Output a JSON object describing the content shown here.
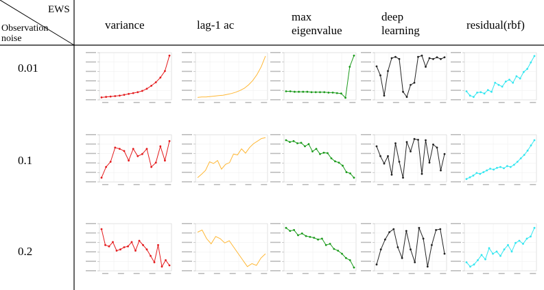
{
  "header": {
    "ews_label": "EWS",
    "obs_label_line1": "Observation",
    "obs_label_line2": "noise",
    "columns": [
      "variance",
      "lag-1 ac",
      "max eigenvalue",
      "deep learning",
      "residual(rbf)"
    ],
    "column_lines": [
      [
        "variance"
      ],
      [
        "lag-1 ac"
      ],
      [
        "max",
        "eigenvalue"
      ],
      [
        "deep",
        "learning"
      ],
      [
        "residual(rbf)"
      ]
    ]
  },
  "rows": [
    "0.01",
    "0.1",
    "0.2"
  ],
  "colors": {
    "variance": "#e41a1c",
    "lag1": "#ffb733",
    "eigen": "#1a9a1a",
    "deep": "#222222",
    "rbf": "#33e6f0"
  },
  "chart_data": [
    {
      "type": "line",
      "row": "0.01",
      "column": "variance",
      "y": [
        0.01,
        0.02,
        0.03,
        0.04,
        0.05,
        0.07,
        0.09,
        0.11,
        0.13,
        0.16,
        0.21,
        0.28,
        0.36,
        0.47,
        0.62,
        0.98
      ],
      "markers": true
    },
    {
      "type": "line",
      "row": "0.01",
      "column": "lag-1 ac",
      "y": [
        0.01,
        0.02,
        0.02,
        0.03,
        0.04,
        0.05,
        0.06,
        0.08,
        0.1,
        0.13,
        0.17,
        0.22,
        0.3,
        0.4,
        0.54,
        0.72,
        0.97
      ],
      "markers": false
    },
    {
      "type": "line",
      "row": "0.01",
      "column": "max eigenvalue",
      "y": [
        0.15,
        0.15,
        0.14,
        0.14,
        0.14,
        0.14,
        0.13,
        0.13,
        0.13,
        0.13,
        0.12,
        0.12,
        0.11,
        0.1,
        0.0,
        0.72,
        0.98
      ],
      "markers": true
    },
    {
      "type": "line",
      "row": "0.01",
      "column": "deep learning",
      "y": [
        0.73,
        0.52,
        0.05,
        0.62,
        0.92,
        0.95,
        0.9,
        0.14,
        0.02,
        0.3,
        0.35,
        0.95,
        0.98,
        0.72,
        0.92,
        0.9,
        0.94,
        0.9,
        0.94
      ],
      "markers": true
    },
    {
      "type": "line",
      "row": "0.01",
      "column": "residual(rbf)",
      "y": [
        0.15,
        0.05,
        0.02,
        0.12,
        0.13,
        0.1,
        0.18,
        0.14,
        0.35,
        0.3,
        0.26,
        0.38,
        0.42,
        0.35,
        0.5,
        0.45,
        0.6,
        0.67,
        0.82,
        0.97
      ],
      "markers": true
    },
    {
      "type": "line",
      "row": "0.1",
      "column": "variance",
      "y": [
        0.05,
        0.3,
        0.42,
        0.75,
        0.72,
        0.67,
        0.45,
        0.72,
        0.55,
        0.6,
        0.72,
        0.3,
        0.4,
        0.78,
        0.45,
        0.9
      ],
      "markers": true
    },
    {
      "type": "line",
      "row": "0.1",
      "column": "lag-1 ac",
      "y": [
        0.05,
        0.13,
        0.22,
        0.42,
        0.38,
        0.45,
        0.25,
        0.36,
        0.4,
        0.6,
        0.58,
        0.72,
        0.62,
        0.75,
        0.84,
        0.9,
        0.96,
        0.98
      ],
      "markers": false
    },
    {
      "type": "line",
      "row": "0.1",
      "column": "max eigenvalue",
      "y": [
        0.92,
        0.88,
        0.9,
        0.85,
        0.86,
        0.78,
        0.83,
        0.66,
        0.72,
        0.6,
        0.63,
        0.62,
        0.5,
        0.43,
        0.4,
        0.33,
        0.18,
        0.15,
        0.05
      ],
      "markers": true
    },
    {
      "type": "line",
      "row": "0.1",
      "column": "deep learning",
      "y": [
        0.78,
        0.55,
        0.38,
        0.55,
        0.12,
        0.85,
        0.42,
        0.05,
        0.88,
        0.66,
        0.95,
        0.93,
        0.14,
        0.92,
        0.4,
        0.82,
        0.75,
        0.22,
        0.6
      ],
      "markers": true
    },
    {
      "type": "line",
      "row": "0.1",
      "column": "residual(rbf)",
      "y": [
        0.02,
        0.06,
        0.1,
        0.16,
        0.14,
        0.18,
        0.22,
        0.26,
        0.24,
        0.28,
        0.3,
        0.27,
        0.32,
        0.3,
        0.35,
        0.42,
        0.5,
        0.58,
        0.68,
        0.8,
        0.92
      ],
      "markers": true
    },
    {
      "type": "line",
      "row": "0.2",
      "column": "variance",
      "y": [
        0.92,
        0.55,
        0.52,
        0.62,
        0.42,
        0.45,
        0.5,
        0.52,
        0.62,
        0.42,
        0.65,
        0.55,
        0.45,
        0.3,
        0.15,
        0.55,
        0.05,
        0.2,
        0.08
      ],
      "markers": true
    },
    {
      "type": "line",
      "row": "0.2",
      "column": "lag-1 ac",
      "y": [
        0.85,
        0.9,
        0.7,
        0.58,
        0.75,
        0.7,
        0.6,
        0.65,
        0.5,
        0.35,
        0.2,
        0.05,
        0.12,
        0.08,
        0.25,
        0.35
      ],
      "markers": false
    },
    {
      "type": "line",
      "row": "0.2",
      "column": "max eigenvalue",
      "y": [
        0.95,
        0.88,
        0.9,
        0.78,
        0.82,
        0.76,
        0.74,
        0.72,
        0.68,
        0.7,
        0.55,
        0.58,
        0.46,
        0.42,
        0.35,
        0.25,
        0.2,
        0.03
      ],
      "markers": true
    },
    {
      "type": "line",
      "row": "0.2",
      "column": "deep learning",
      "y": [
        0.1,
        0.45,
        0.68,
        0.85,
        0.92,
        0.5,
        0.25,
        0.88,
        0.45,
        0.15,
        0.95,
        0.7,
        0.05,
        0.55,
        0.9,
        0.92,
        0.35
      ],
      "markers": true
    },
    {
      "type": "line",
      "row": "0.2",
      "column": "residual(rbf)",
      "y": [
        0.15,
        0.05,
        0.1,
        0.2,
        0.32,
        0.22,
        0.48,
        0.35,
        0.4,
        0.3,
        0.45,
        0.55,
        0.4,
        0.6,
        0.65,
        0.58,
        0.7,
        0.75,
        0.95
      ],
      "markers": true
    }
  ]
}
